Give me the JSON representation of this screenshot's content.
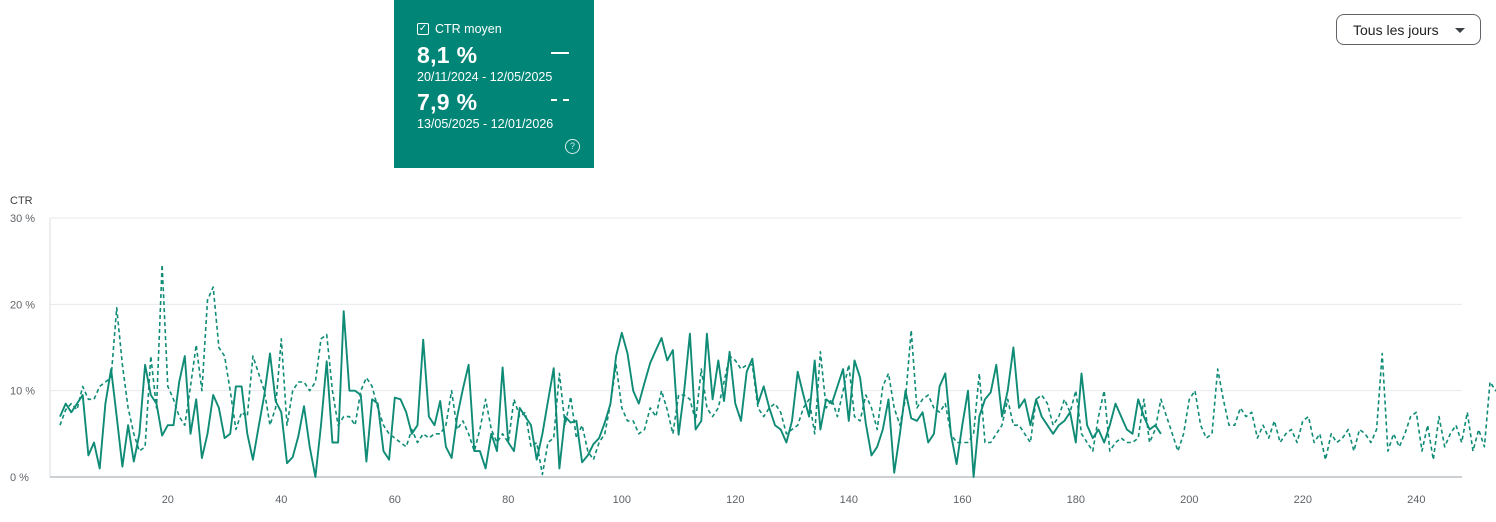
{
  "metric_card": {
    "title": "CTR moyen",
    "current": {
      "value": "8,1 %",
      "range": "20/11/2024 - 12/05/2025"
    },
    "previous": {
      "value": "7,9 %",
      "range": "13/05/2025 - 12/01/2026"
    },
    "color": "#008577"
  },
  "dropdown": {
    "label": "Tous les jours"
  },
  "chart_data": {
    "type": "line",
    "ylabel": "CTR",
    "ylim": [
      0,
      30
    ],
    "xlim": [
      1,
      247
    ],
    "yticks": [
      0,
      10,
      20,
      30
    ],
    "ytick_labels": [
      "0 %",
      "10 %",
      "20 %",
      "30 %"
    ],
    "xticks": [
      20,
      40,
      60,
      80,
      100,
      120,
      140,
      160,
      180,
      200,
      220,
      240
    ],
    "xtick_labels": [
      "20",
      "40",
      "60",
      "80",
      "100",
      "120",
      "140",
      "160",
      "180",
      "200",
      "220",
      "240"
    ],
    "grid": true,
    "line_color": "#0f8b76",
    "series": [
      {
        "style": "solid",
        "values": [
          7.0,
          8.5,
          7.5,
          8.5,
          9.5,
          2.5,
          4.0,
          1.0,
          8.5,
          12.5,
          7.0,
          1.2,
          6.0,
          1.8,
          5.0,
          13.0,
          9.5,
          8.5,
          4.8,
          6.0,
          6.0,
          11.0,
          14.0,
          5.0,
          9.0,
          2.2,
          5.0,
          9.5,
          8.0,
          4.5,
          5.0,
          10.5,
          10.5,
          5.0,
          2.0,
          5.8,
          9.5,
          14.3,
          8.8,
          7.5,
          1.6,
          2.3,
          4.7,
          8.2,
          3.5,
          0.0,
          6.0,
          13.4,
          4.0,
          4.0,
          19.2,
          10.0,
          10.0,
          9.5,
          1.8,
          9.0,
          8.5,
          3.0,
          2.0,
          9.2,
          9.0,
          7.5,
          5.0,
          6.0,
          15.9,
          7.0,
          6.0,
          8.8,
          3.5,
          2.2,
          7.0,
          10.2,
          13.0,
          3.0,
          3.0,
          1.0,
          5.0,
          3.0,
          12.7,
          4.0,
          3.0,
          8.0,
          7.0,
          6.0,
          2.0,
          5.0,
          8.8,
          12.6,
          1.0,
          7.0,
          6.3,
          6.5,
          1.7,
          2.5,
          3.8,
          4.5,
          6.3,
          8.5,
          14.0,
          16.7,
          14.3,
          10.0,
          8.5,
          10.9,
          13.2,
          14.7,
          16.1,
          13.5,
          14.7,
          4.9,
          10.0,
          16.6,
          5.5,
          6.5,
          16.6,
          9.0,
          13.5,
          8.8,
          14.5,
          8.5,
          6.5,
          12.2,
          13.7,
          8.5,
          10.5,
          8.0,
          6.0,
          5.5,
          4.0,
          6.5,
          12.2,
          9.5,
          7.0,
          13.5,
          5.5,
          9.0,
          8.5,
          10.5,
          12.5,
          6.5,
          13.5,
          11.5,
          6.2,
          2.5,
          3.5,
          5.5,
          9.0,
          0.5,
          5.0,
          10.0,
          6.8,
          6.5,
          7.5,
          4.0,
          5.0,
          10.5,
          12.0,
          5.0,
          1.5,
          6.0,
          10.0,
          0.0,
          7.0,
          9.0,
          9.8,
          13.0,
          7.0,
          10.0,
          15.0,
          8.0,
          9.0,
          6.0,
          9.0,
          7.0,
          6.0,
          5.0,
          6.0,
          6.5,
          7.5,
          4.0,
          12.0,
          6.0,
          4.5,
          5.5,
          4.0,
          6.0,
          8.5,
          7.0,
          5.5,
          5.0,
          9.0,
          7.0,
          5.5,
          6.0,
          5.0
        ]
      },
      {
        "style": "dashed",
        "values": [
          6.0,
          7.8,
          8.5,
          7.8,
          10.5,
          9.0,
          9.0,
          10.5,
          11.0,
          11.5,
          19.6,
          13.0,
          8.0,
          5.0,
          3.0,
          3.5,
          14.0,
          8.0,
          24.6,
          10.5,
          9.0,
          7.0,
          6.0,
          10.5,
          15.3,
          10.0,
          20.5,
          22.0,
          15.0,
          14.0,
          10.0,
          5.5,
          7.5,
          7.0,
          14.0,
          12.0,
          10.0,
          6.0,
          8.0,
          16.0,
          6.0,
          10.0,
          11.0,
          11.0,
          10.0,
          11.0,
          16.0,
          16.5,
          10.0,
          6.0,
          7.0,
          7.0,
          6.0,
          10.0,
          11.5,
          10.5,
          8.0,
          6.0,
          5.0,
          4.5,
          4.0,
          3.5,
          5.5,
          4.0,
          5.0,
          4.5,
          5.0,
          5.0,
          6.0,
          10.0,
          5.5,
          6.5,
          5.0,
          3.0,
          5.5,
          9.0,
          5.5,
          4.0,
          5.0,
          4.0,
          9.0,
          7.0,
          7.5,
          3.5,
          4.0,
          0.3,
          4.0,
          4.5,
          12.0,
          6.0,
          9.3,
          4.5,
          6.0,
          3.0,
          2.0,
          4.0,
          5.0,
          8.5,
          13.0,
          8.0,
          6.5,
          6.5,
          5.0,
          5.5,
          8.0,
          7.0,
          10.0,
          7.8,
          5.0,
          9.5,
          9.5,
          9.0,
          6.5,
          12.5,
          8.0,
          7.0,
          8.0,
          11.0,
          14.0,
          13.5,
          12.5,
          13.0,
          13.0,
          8.0,
          7.0,
          8.0,
          8.5,
          7.5,
          5.0,
          5.5,
          6.0,
          8.0,
          9.0,
          5.0,
          14.5,
          8.0,
          9.0,
          7.0,
          10.0,
          13.0,
          7.0,
          6.5,
          9.5,
          8.0,
          5.5,
          10.5,
          12.0,
          8.0,
          6.0,
          9.0,
          17.0,
          8.0,
          9.0,
          9.5,
          8.0,
          7.5,
          8.5,
          5.0,
          4.0,
          4.0,
          4.0,
          5.0,
          12.0,
          4.0,
          4.0,
          5.0,
          6.0,
          9.0,
          6.0,
          6.0,
          5.0,
          4.0,
          9.0,
          9.5,
          8.5,
          6.0,
          7.0,
          9.0,
          7.5,
          10.0,
          5.0,
          4.0,
          3.0,
          7.0,
          10.0,
          3.0,
          4.0,
          4.5,
          4.0,
          4.0,
          4.5,
          9.0,
          4.0,
          5.5,
          9.0,
          7.0,
          5.0,
          3.0,
          5.0,
          9.0,
          10.0,
          6.0,
          4.5,
          5.0,
          12.5,
          9.0,
          6.0,
          6.0,
          8.0,
          7.0,
          7.5,
          4.5,
          6.0,
          4.5,
          6.5,
          4.0,
          5.0,
          5.5,
          4.0,
          6.5,
          7.0,
          4.0,
          5.0,
          2.0,
          5.0,
          4.0,
          4.5,
          5.5,
          3.0,
          5.5,
          5.0,
          4.0,
          5.5,
          14.3,
          3.0,
          5.0,
          3.5,
          5.0,
          7.0,
          7.5,
          3.0,
          6.0,
          2.0,
          7.0,
          3.5,
          5.0,
          6.0,
          4.0,
          7.5,
          3.0,
          5.5,
          3.5,
          11.0,
          10.0,
          11.0,
          5.0,
          4.0,
          4.0,
          7.5,
          11.5,
          12.0
        ]
      }
    ]
  }
}
